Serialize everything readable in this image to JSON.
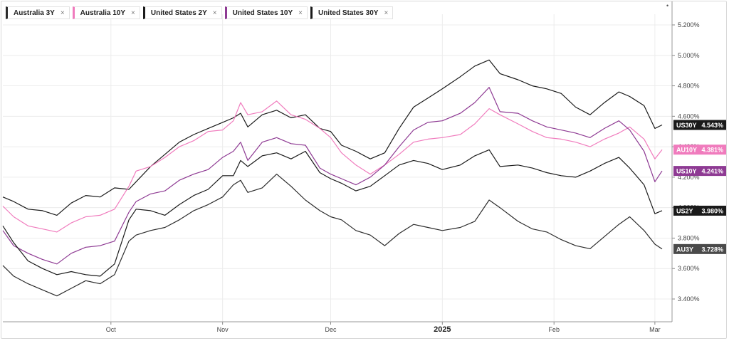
{
  "legend": [
    {
      "name": "Australia 3Y",
      "color": "#2b2b2b"
    },
    {
      "name": "Australia 10Y",
      "color": "#f07bbd"
    },
    {
      "name": "United States 2Y",
      "color": "#1a1a1a"
    },
    {
      "name": "United States 10Y",
      "color": "#8e3a93"
    },
    {
      "name": "United States 30Y",
      "color": "#1a1a1a"
    }
  ],
  "legend_close": "×",
  "chart_data": {
    "type": "line",
    "title": "",
    "xlabel": "",
    "ylabel": "",
    "ylim": [
      3.3,
      5.3
    ],
    "y_ticks": [
      "5.200%",
      "5.000%",
      "4.800%",
      "4.600%",
      "4.400%",
      "4.200%",
      "4.000%",
      "3.800%",
      "3.600%",
      "3.400%"
    ],
    "y_tick_values": [
      5.2,
      5.0,
      4.8,
      4.6,
      4.4,
      4.2,
      4.0,
      3.8,
      3.6,
      3.4
    ],
    "x_ticks": [
      {
        "label": "Oct",
        "date": "2024-10-01",
        "major": false
      },
      {
        "label": "Nov",
        "date": "2024-11-01",
        "major": false
      },
      {
        "label": "Dec",
        "date": "2024-12-01",
        "major": false
      },
      {
        "label": "2025",
        "date": "2025-01-01",
        "major": true
      },
      {
        "label": "Feb",
        "date": "2025-02-01",
        "major": false
      },
      {
        "label": "Mar",
        "date": "2025-03-01",
        "major": false
      }
    ],
    "x_range": [
      "2024-09-01",
      "2025-03-03"
    ],
    "grid": true,
    "series": [
      {
        "name": "United States 30Y",
        "short": "US30Y",
        "last": "4.543%",
        "color": "#1a1a1a",
        "label_bg": "#1a1a1a",
        "points": [
          [
            "2024-09-01",
            4.07
          ],
          [
            "2024-09-04",
            4.04
          ],
          [
            "2024-09-08",
            3.99
          ],
          [
            "2024-09-12",
            3.98
          ],
          [
            "2024-09-16",
            3.95
          ],
          [
            "2024-09-20",
            4.03
          ],
          [
            "2024-09-24",
            4.08
          ],
          [
            "2024-09-28",
            4.07
          ],
          [
            "2024-10-02",
            4.13
          ],
          [
            "2024-10-06",
            4.12
          ],
          [
            "2024-10-08",
            4.17
          ],
          [
            "2024-10-12",
            4.27
          ],
          [
            "2024-10-16",
            4.35
          ],
          [
            "2024-10-20",
            4.43
          ],
          [
            "2024-10-24",
            4.48
          ],
          [
            "2024-10-28",
            4.52
          ],
          [
            "2024-11-01",
            4.56
          ],
          [
            "2024-11-04",
            4.59
          ],
          [
            "2024-11-06",
            4.62
          ],
          [
            "2024-11-08",
            4.53
          ],
          [
            "2024-11-12",
            4.61
          ],
          [
            "2024-11-16",
            4.64
          ],
          [
            "2024-11-20",
            4.59
          ],
          [
            "2024-11-24",
            4.61
          ],
          [
            "2024-11-28",
            4.52
          ],
          [
            "2024-12-01",
            4.5
          ],
          [
            "2024-12-04",
            4.41
          ],
          [
            "2024-12-08",
            4.37
          ],
          [
            "2024-12-12",
            4.32
          ],
          [
            "2024-12-16",
            4.36
          ],
          [
            "2024-12-20",
            4.52
          ],
          [
            "2024-12-24",
            4.66
          ],
          [
            "2024-12-28",
            4.72
          ],
          [
            "2025-01-01",
            4.78
          ],
          [
            "2025-01-06",
            4.86
          ],
          [
            "2025-01-10",
            4.93
          ],
          [
            "2025-01-14",
            4.97
          ],
          [
            "2025-01-17",
            4.88
          ],
          [
            "2025-01-22",
            4.84
          ],
          [
            "2025-01-26",
            4.8
          ],
          [
            "2025-01-30",
            4.78
          ],
          [
            "2025-02-03",
            4.75
          ],
          [
            "2025-02-07",
            4.66
          ],
          [
            "2025-02-11",
            4.61
          ],
          [
            "2025-02-15",
            4.69
          ],
          [
            "2025-02-19",
            4.76
          ],
          [
            "2025-02-22",
            4.73
          ],
          [
            "2025-02-26",
            4.67
          ],
          [
            "2025-03-01",
            4.52
          ],
          [
            "2025-03-03",
            4.543
          ]
        ]
      },
      {
        "name": "Australia 10Y",
        "short": "AU10Y",
        "last": "4.381%",
        "color": "#f07bbd",
        "label_bg": "#f07bbd",
        "points": [
          [
            "2024-09-01",
            4.01
          ],
          [
            "2024-09-04",
            3.94
          ],
          [
            "2024-09-08",
            3.88
          ],
          [
            "2024-09-12",
            3.86
          ],
          [
            "2024-09-16",
            3.84
          ],
          [
            "2024-09-20",
            3.9
          ],
          [
            "2024-09-24",
            3.94
          ],
          [
            "2024-09-28",
            3.95
          ],
          [
            "2024-10-02",
            3.99
          ],
          [
            "2024-10-06",
            4.14
          ],
          [
            "2024-10-08",
            4.24
          ],
          [
            "2024-10-12",
            4.27
          ],
          [
            "2024-10-16",
            4.33
          ],
          [
            "2024-10-20",
            4.4
          ],
          [
            "2024-10-24",
            4.44
          ],
          [
            "2024-10-28",
            4.5
          ],
          [
            "2024-11-01",
            4.51
          ],
          [
            "2024-11-04",
            4.57
          ],
          [
            "2024-11-06",
            4.69
          ],
          [
            "2024-11-08",
            4.61
          ],
          [
            "2024-11-12",
            4.63
          ],
          [
            "2024-11-16",
            4.7
          ],
          [
            "2024-11-20",
            4.61
          ],
          [
            "2024-11-24",
            4.58
          ],
          [
            "2024-11-28",
            4.52
          ],
          [
            "2024-12-01",
            4.46
          ],
          [
            "2024-12-04",
            4.36
          ],
          [
            "2024-12-08",
            4.28
          ],
          [
            "2024-12-12",
            4.22
          ],
          [
            "2024-12-16",
            4.28
          ],
          [
            "2024-12-20",
            4.35
          ],
          [
            "2024-12-24",
            4.43
          ],
          [
            "2024-12-28",
            4.45
          ],
          [
            "2025-01-01",
            4.46
          ],
          [
            "2025-01-06",
            4.48
          ],
          [
            "2025-01-10",
            4.55
          ],
          [
            "2025-01-14",
            4.65
          ],
          [
            "2025-01-17",
            4.61
          ],
          [
            "2025-01-22",
            4.55
          ],
          [
            "2025-01-26",
            4.5
          ],
          [
            "2025-01-30",
            4.46
          ],
          [
            "2025-02-03",
            4.45
          ],
          [
            "2025-02-07",
            4.43
          ],
          [
            "2025-02-11",
            4.4
          ],
          [
            "2025-02-15",
            4.45
          ],
          [
            "2025-02-19",
            4.49
          ],
          [
            "2025-02-22",
            4.53
          ],
          [
            "2025-02-26",
            4.45
          ],
          [
            "2025-03-01",
            4.32
          ],
          [
            "2025-03-03",
            4.381
          ]
        ]
      },
      {
        "name": "United States 10Y",
        "short": "US10Y",
        "last": "4.241%",
        "color": "#8e3a93",
        "label_bg": "#8e3a93",
        "points": [
          [
            "2024-09-01",
            3.85
          ],
          [
            "2024-09-04",
            3.75
          ],
          [
            "2024-09-08",
            3.7
          ],
          [
            "2024-09-12",
            3.66
          ],
          [
            "2024-09-16",
            3.63
          ],
          [
            "2024-09-20",
            3.7
          ],
          [
            "2024-09-24",
            3.74
          ],
          [
            "2024-09-28",
            3.75
          ],
          [
            "2024-10-02",
            3.78
          ],
          [
            "2024-10-06",
            3.97
          ],
          [
            "2024-10-08",
            4.04
          ],
          [
            "2024-10-12",
            4.09
          ],
          [
            "2024-10-16",
            4.11
          ],
          [
            "2024-10-20",
            4.18
          ],
          [
            "2024-10-24",
            4.22
          ],
          [
            "2024-10-28",
            4.25
          ],
          [
            "2024-11-01",
            4.33
          ],
          [
            "2024-11-04",
            4.37
          ],
          [
            "2024-11-06",
            4.43
          ],
          [
            "2024-11-08",
            4.31
          ],
          [
            "2024-11-12",
            4.43
          ],
          [
            "2024-11-16",
            4.46
          ],
          [
            "2024-11-20",
            4.42
          ],
          [
            "2024-11-24",
            4.41
          ],
          [
            "2024-11-28",
            4.26
          ],
          [
            "2024-12-01",
            4.22
          ],
          [
            "2024-12-04",
            4.19
          ],
          [
            "2024-12-08",
            4.15
          ],
          [
            "2024-12-12",
            4.2
          ],
          [
            "2024-12-16",
            4.28
          ],
          [
            "2024-12-20",
            4.4
          ],
          [
            "2024-12-24",
            4.51
          ],
          [
            "2024-12-28",
            4.56
          ],
          [
            "2025-01-01",
            4.57
          ],
          [
            "2025-01-06",
            4.62
          ],
          [
            "2025-01-10",
            4.69
          ],
          [
            "2025-01-14",
            4.79
          ],
          [
            "2025-01-17",
            4.63
          ],
          [
            "2025-01-22",
            4.62
          ],
          [
            "2025-01-26",
            4.57
          ],
          [
            "2025-01-30",
            4.53
          ],
          [
            "2025-02-03",
            4.51
          ],
          [
            "2025-02-07",
            4.49
          ],
          [
            "2025-02-11",
            4.46
          ],
          [
            "2025-02-15",
            4.52
          ],
          [
            "2025-02-19",
            4.57
          ],
          [
            "2025-02-22",
            4.51
          ],
          [
            "2025-02-26",
            4.37
          ],
          [
            "2025-03-01",
            4.17
          ],
          [
            "2025-03-03",
            4.241
          ]
        ]
      },
      {
        "name": "United States 2Y",
        "short": "US2Y",
        "last": "3.980%",
        "color": "#1a1a1a",
        "label_bg": "#1a1a1a",
        "points": [
          [
            "2024-09-01",
            3.88
          ],
          [
            "2024-09-04",
            3.77
          ],
          [
            "2024-09-08",
            3.65
          ],
          [
            "2024-09-12",
            3.6
          ],
          [
            "2024-09-16",
            3.56
          ],
          [
            "2024-09-20",
            3.58
          ],
          [
            "2024-09-24",
            3.56
          ],
          [
            "2024-09-28",
            3.55
          ],
          [
            "2024-10-02",
            3.63
          ],
          [
            "2024-10-06",
            3.92
          ],
          [
            "2024-10-08",
            3.99
          ],
          [
            "2024-10-12",
            3.98
          ],
          [
            "2024-10-16",
            3.95
          ],
          [
            "2024-10-20",
            4.02
          ],
          [
            "2024-10-24",
            4.08
          ],
          [
            "2024-10-28",
            4.12
          ],
          [
            "2024-11-01",
            4.21
          ],
          [
            "2024-11-04",
            4.21
          ],
          [
            "2024-11-06",
            4.31
          ],
          [
            "2024-11-08",
            4.27
          ],
          [
            "2024-11-12",
            4.34
          ],
          [
            "2024-11-16",
            4.36
          ],
          [
            "2024-11-20",
            4.32
          ],
          [
            "2024-11-24",
            4.37
          ],
          [
            "2024-11-28",
            4.23
          ],
          [
            "2024-12-01",
            4.19
          ],
          [
            "2024-12-04",
            4.16
          ],
          [
            "2024-12-08",
            4.11
          ],
          [
            "2024-12-12",
            4.14
          ],
          [
            "2024-12-16",
            4.21
          ],
          [
            "2024-12-20",
            4.28
          ],
          [
            "2024-12-24",
            4.31
          ],
          [
            "2024-12-28",
            4.29
          ],
          [
            "2025-01-01",
            4.25
          ],
          [
            "2025-01-06",
            4.28
          ],
          [
            "2025-01-10",
            4.34
          ],
          [
            "2025-01-14",
            4.38
          ],
          [
            "2025-01-17",
            4.27
          ],
          [
            "2025-01-22",
            4.28
          ],
          [
            "2025-01-26",
            4.26
          ],
          [
            "2025-01-30",
            4.23
          ],
          [
            "2025-02-03",
            4.21
          ],
          [
            "2025-02-07",
            4.2
          ],
          [
            "2025-02-11",
            4.24
          ],
          [
            "2025-02-15",
            4.29
          ],
          [
            "2025-02-19",
            4.33
          ],
          [
            "2025-02-22",
            4.26
          ],
          [
            "2025-02-26",
            4.15
          ],
          [
            "2025-03-01",
            3.96
          ],
          [
            "2025-03-03",
            3.98
          ]
        ]
      },
      {
        "name": "Australia 3Y",
        "short": "AU3Y",
        "last": "3.728%",
        "color": "#2b2b2b",
        "label_bg": "#4a4a4a",
        "points": [
          [
            "2024-09-01",
            3.62
          ],
          [
            "2024-09-04",
            3.55
          ],
          [
            "2024-09-08",
            3.5
          ],
          [
            "2024-09-12",
            3.46
          ],
          [
            "2024-09-16",
            3.42
          ],
          [
            "2024-09-20",
            3.47
          ],
          [
            "2024-09-24",
            3.52
          ],
          [
            "2024-09-28",
            3.5
          ],
          [
            "2024-10-02",
            3.56
          ],
          [
            "2024-10-06",
            3.78
          ],
          [
            "2024-10-08",
            3.82
          ],
          [
            "2024-10-12",
            3.85
          ],
          [
            "2024-10-16",
            3.87
          ],
          [
            "2024-10-20",
            3.92
          ],
          [
            "2024-10-24",
            3.98
          ],
          [
            "2024-10-28",
            4.02
          ],
          [
            "2024-11-01",
            4.07
          ],
          [
            "2024-11-04",
            4.15
          ],
          [
            "2024-11-06",
            4.18
          ],
          [
            "2024-11-08",
            4.1
          ],
          [
            "2024-11-12",
            4.13
          ],
          [
            "2024-11-16",
            4.22
          ],
          [
            "2024-11-20",
            4.14
          ],
          [
            "2024-11-24",
            4.05
          ],
          [
            "2024-11-28",
            3.98
          ],
          [
            "2024-12-01",
            3.94
          ],
          [
            "2024-12-04",
            3.92
          ],
          [
            "2024-12-08",
            3.85
          ],
          [
            "2024-12-12",
            3.82
          ],
          [
            "2024-12-16",
            3.75
          ],
          [
            "2024-12-20",
            3.83
          ],
          [
            "2024-12-24",
            3.89
          ],
          [
            "2024-12-28",
            3.87
          ],
          [
            "2025-01-01",
            3.85
          ],
          [
            "2025-01-06",
            3.87
          ],
          [
            "2025-01-10",
            3.91
          ],
          [
            "2025-01-14",
            4.05
          ],
          [
            "2025-01-17",
            4.0
          ],
          [
            "2025-01-22",
            3.91
          ],
          [
            "2025-01-26",
            3.86
          ],
          [
            "2025-01-30",
            3.84
          ],
          [
            "2025-02-03",
            3.79
          ],
          [
            "2025-02-07",
            3.75
          ],
          [
            "2025-02-11",
            3.73
          ],
          [
            "2025-02-15",
            3.81
          ],
          [
            "2025-02-19",
            3.89
          ],
          [
            "2025-02-22",
            3.94
          ],
          [
            "2025-02-26",
            3.85
          ],
          [
            "2025-03-01",
            3.76
          ],
          [
            "2025-03-03",
            3.728
          ]
        ]
      }
    ]
  }
}
